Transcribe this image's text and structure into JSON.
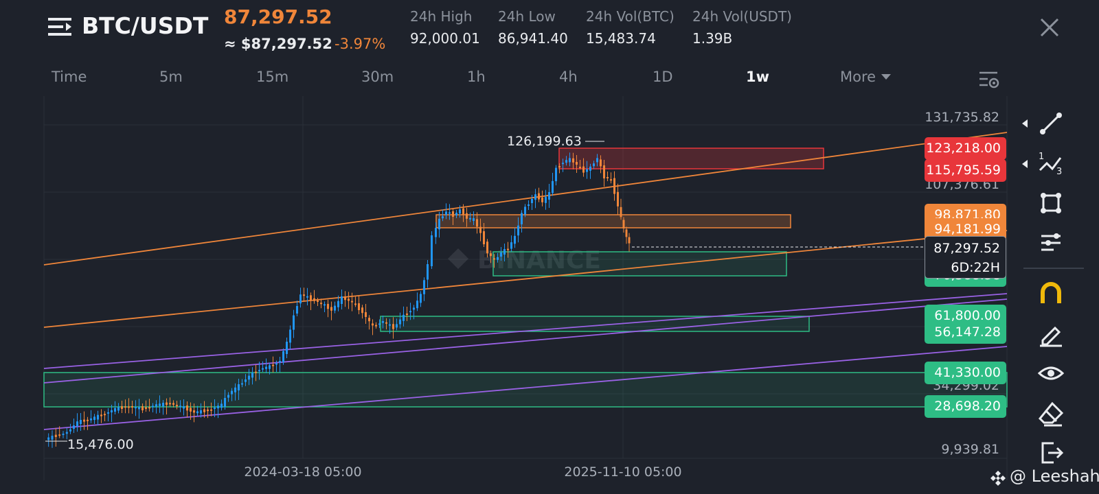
{
  "header": {
    "pair": "BTC/USDT",
    "last_price": "87,297.52",
    "usd_approx": "≈ $87,297.52",
    "change_pct": "-3.97%",
    "stats": [
      {
        "label": "24h High",
        "value": "92,000.01"
      },
      {
        "label": "24h Low",
        "value": "86,941.40"
      },
      {
        "label": "24h Vol(BTC)",
        "value": "15,483.74"
      },
      {
        "label": "24h Vol(USDT)",
        "value": "1.39B"
      }
    ]
  },
  "tabs": [
    {
      "label": "Time",
      "active": false
    },
    {
      "label": "5m",
      "active": false
    },
    {
      "label": "15m",
      "active": false
    },
    {
      "label": "30m",
      "active": false
    },
    {
      "label": "1h",
      "active": false
    },
    {
      "label": "4h",
      "active": false
    },
    {
      "label": "1D",
      "active": false
    },
    {
      "label": "1w",
      "active": true
    },
    {
      "label": "More",
      "active": false
    }
  ],
  "toolbar": {
    "tools": [
      "trend-line-icon",
      "fib-icon",
      "shapes-icon",
      "indicator-settings-icon",
      "magnet-icon",
      "pen-icon",
      "eye-icon",
      "eraser-icon",
      "exit-icon"
    ]
  },
  "chart_data": {
    "type": "candlestick",
    "y_ticks": [
      "131,735.82",
      "107,376.61",
      "98,871.80",
      "94,181.99",
      "76,388.58",
      "61,800.00",
      "34,299.02",
      "9,939.81"
    ],
    "x_ticks": [
      "2024-03-18 05:00",
      "2025-11-10 05:00"
    ],
    "annotations": {
      "high": "126,199.63",
      "low": "15,476.00"
    },
    "current": {
      "price": "87,297.52",
      "countdown": "6D:22H"
    },
    "price_tags": [
      {
        "value": "123,218.00",
        "color": "#e8363b"
      },
      {
        "value": "115,795.59",
        "color": "#e8363b"
      },
      {
        "value": "98,871.80",
        "color": "#f0863a"
      },
      {
        "value": "94,181.99",
        "color": "#f0863a"
      },
      {
        "value": "76,388.58",
        "color": "#2ebd85"
      },
      {
        "value": "61,800.00",
        "color": "#2ebd85"
      },
      {
        "value": "56,147.28",
        "color": "#2ebd85"
      },
      {
        "value": "41,330.00",
        "color": "#2ebd85"
      },
      {
        "value": "28,698.20",
        "color": "#2ebd85"
      }
    ],
    "zones": [
      {
        "name": "supply-zone",
        "from": 115795.59,
        "to": 123218.0,
        "color": "#e8363b"
      },
      {
        "name": "resistance-zone",
        "from": 94181.99,
        "to": 98871.8,
        "color": "#f0863a"
      },
      {
        "name": "support-zone",
        "from": 76388.58,
        "to": 83500,
        "color": "#2ebd85"
      },
      {
        "name": "demand-zone",
        "from": 56147.28,
        "to": 61800.0,
        "color": "#2ebd85"
      },
      {
        "name": "accumulation-zone",
        "from": 28698.2,
        "to": 41330.0,
        "color": "#2ebd85"
      }
    ],
    "colors": {
      "up": "#2196f3",
      "down": "#f0863a",
      "channel_orange": "#f0863a",
      "channel_purple": "#9a62e6"
    },
    "brand_watermark": "BINANCE"
  },
  "watermark": "@ Leeshah"
}
